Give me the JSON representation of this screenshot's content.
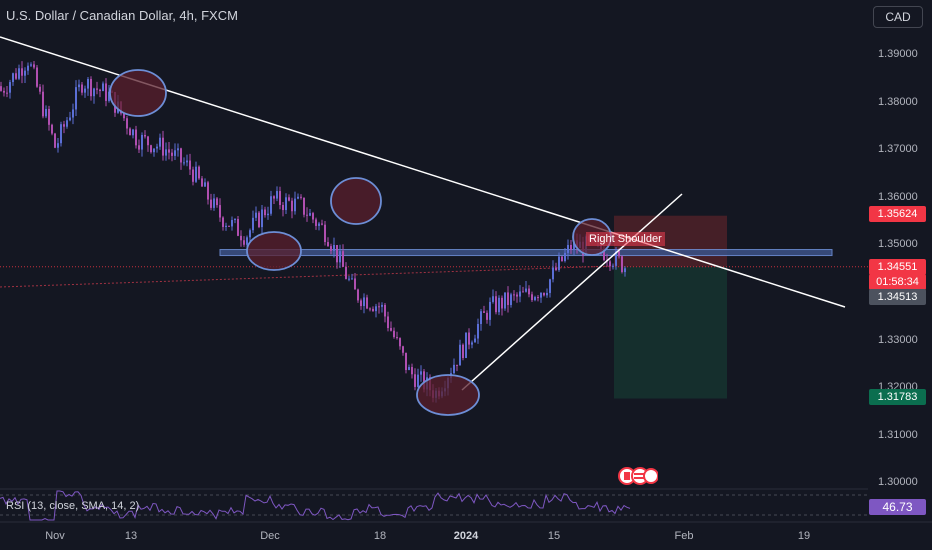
{
  "header": {
    "title": "U.S. Dollar / Canadian Dollar, 4h, FXCM",
    "currency": "CAD"
  },
  "price_tags": {
    "stop": "1.35624",
    "last": "1.34551",
    "countdown": "01:58:34",
    "bid": "1.34513",
    "target": "1.31783"
  },
  "annotation": {
    "label": "Right Shoulder"
  },
  "rsi": {
    "label": "RSI (13, close, SMA, 14, 2)",
    "value": "46.73"
  },
  "colors": {
    "background": "#141722",
    "candle": "#5b6fd6",
    "candle_alt": "#b04fb0",
    "trendline": "#ffffff",
    "neckline_fill": "#3a4f82",
    "ellipse_fill": "#5a1f2c",
    "ellipse_stroke": "#6d8ed6",
    "stop_zone": "#4a2028",
    "target_zone": "#15302e",
    "stop_tag": "#f23645",
    "target_tag": "#0b6e4f",
    "rsi_line": "#7e57c2"
  },
  "chart_data": {
    "type": "line",
    "title": "U.S. Dollar / Canadian Dollar, 4h, FXCM",
    "xlabel": "",
    "ylabel": "",
    "ylim": [
      1.295,
      1.4
    ],
    "y_ticks": [
      "1.39000",
      "1.38000",
      "1.37000",
      "1.36000",
      "1.35000",
      "1.34000",
      "1.33000",
      "1.32000",
      "1.31000",
      "1.30000"
    ],
    "x_ticks": [
      "Nov",
      "13",
      "Dec",
      "18",
      "2024",
      "15",
      "Feb",
      "19"
    ],
    "x": [
      "Nov 3",
      "Nov 7",
      "Nov 10",
      "Nov 14",
      "Nov 17",
      "Nov 21",
      "Nov 24",
      "Nov 28",
      "Dec 1",
      "Dec 5",
      "Dec 8",
      "Dec 12",
      "Dec 15",
      "Dec 19",
      "Dec 22",
      "Dec 27",
      "Dec 29",
      "Jan 2",
      "Jan 5",
      "Jan 9",
      "Jan 12",
      "Jan 16",
      "Jan 19",
      "Jan 23"
    ],
    "series": [
      {
        "values": [
          1.3825,
          1.3892,
          1.3705,
          1.3845,
          1.3815,
          1.3725,
          1.3705,
          1.366,
          1.3565,
          1.352,
          1.3595,
          1.3585,
          1.3525,
          1.34,
          1.337,
          1.3235,
          1.319,
          1.3285,
          1.337,
          1.339,
          1.341,
          1.35,
          1.3495,
          1.3455
        ]
      }
    ],
    "annotations": {
      "resistance_level": 1.3485,
      "entry": 1.3455,
      "stop_loss": 1.35624,
      "take_profit": 1.31783,
      "last_price": 1.34551,
      "bid_price": 1.34513,
      "pattern_label": "Right Shoulder"
    },
    "rsi": {
      "period": 13,
      "source": "close",
      "smoothing": "SMA",
      "smoothing_length": 14,
      "value": 46.73
    },
    "grid": false,
    "legend": "none"
  }
}
